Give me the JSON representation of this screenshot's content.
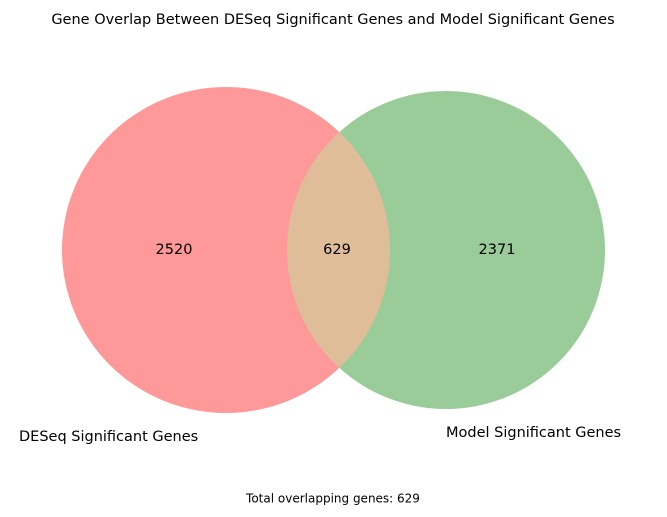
{
  "diagram": {
    "type": "venn2",
    "title": "Gene Overlap Between DESeq Significant Genes and Model Significant Genes",
    "sets": [
      {
        "label": "DESeq Significant Genes",
        "only_count": "2520",
        "color": "#ff9999"
      },
      {
        "label": "Model Significant Genes",
        "only_count": "2371",
        "color": "#99cc99"
      }
    ],
    "intersection": {
      "count": "629",
      "color": "#e0bd99"
    },
    "footer": "Total overlapping genes: 629"
  }
}
